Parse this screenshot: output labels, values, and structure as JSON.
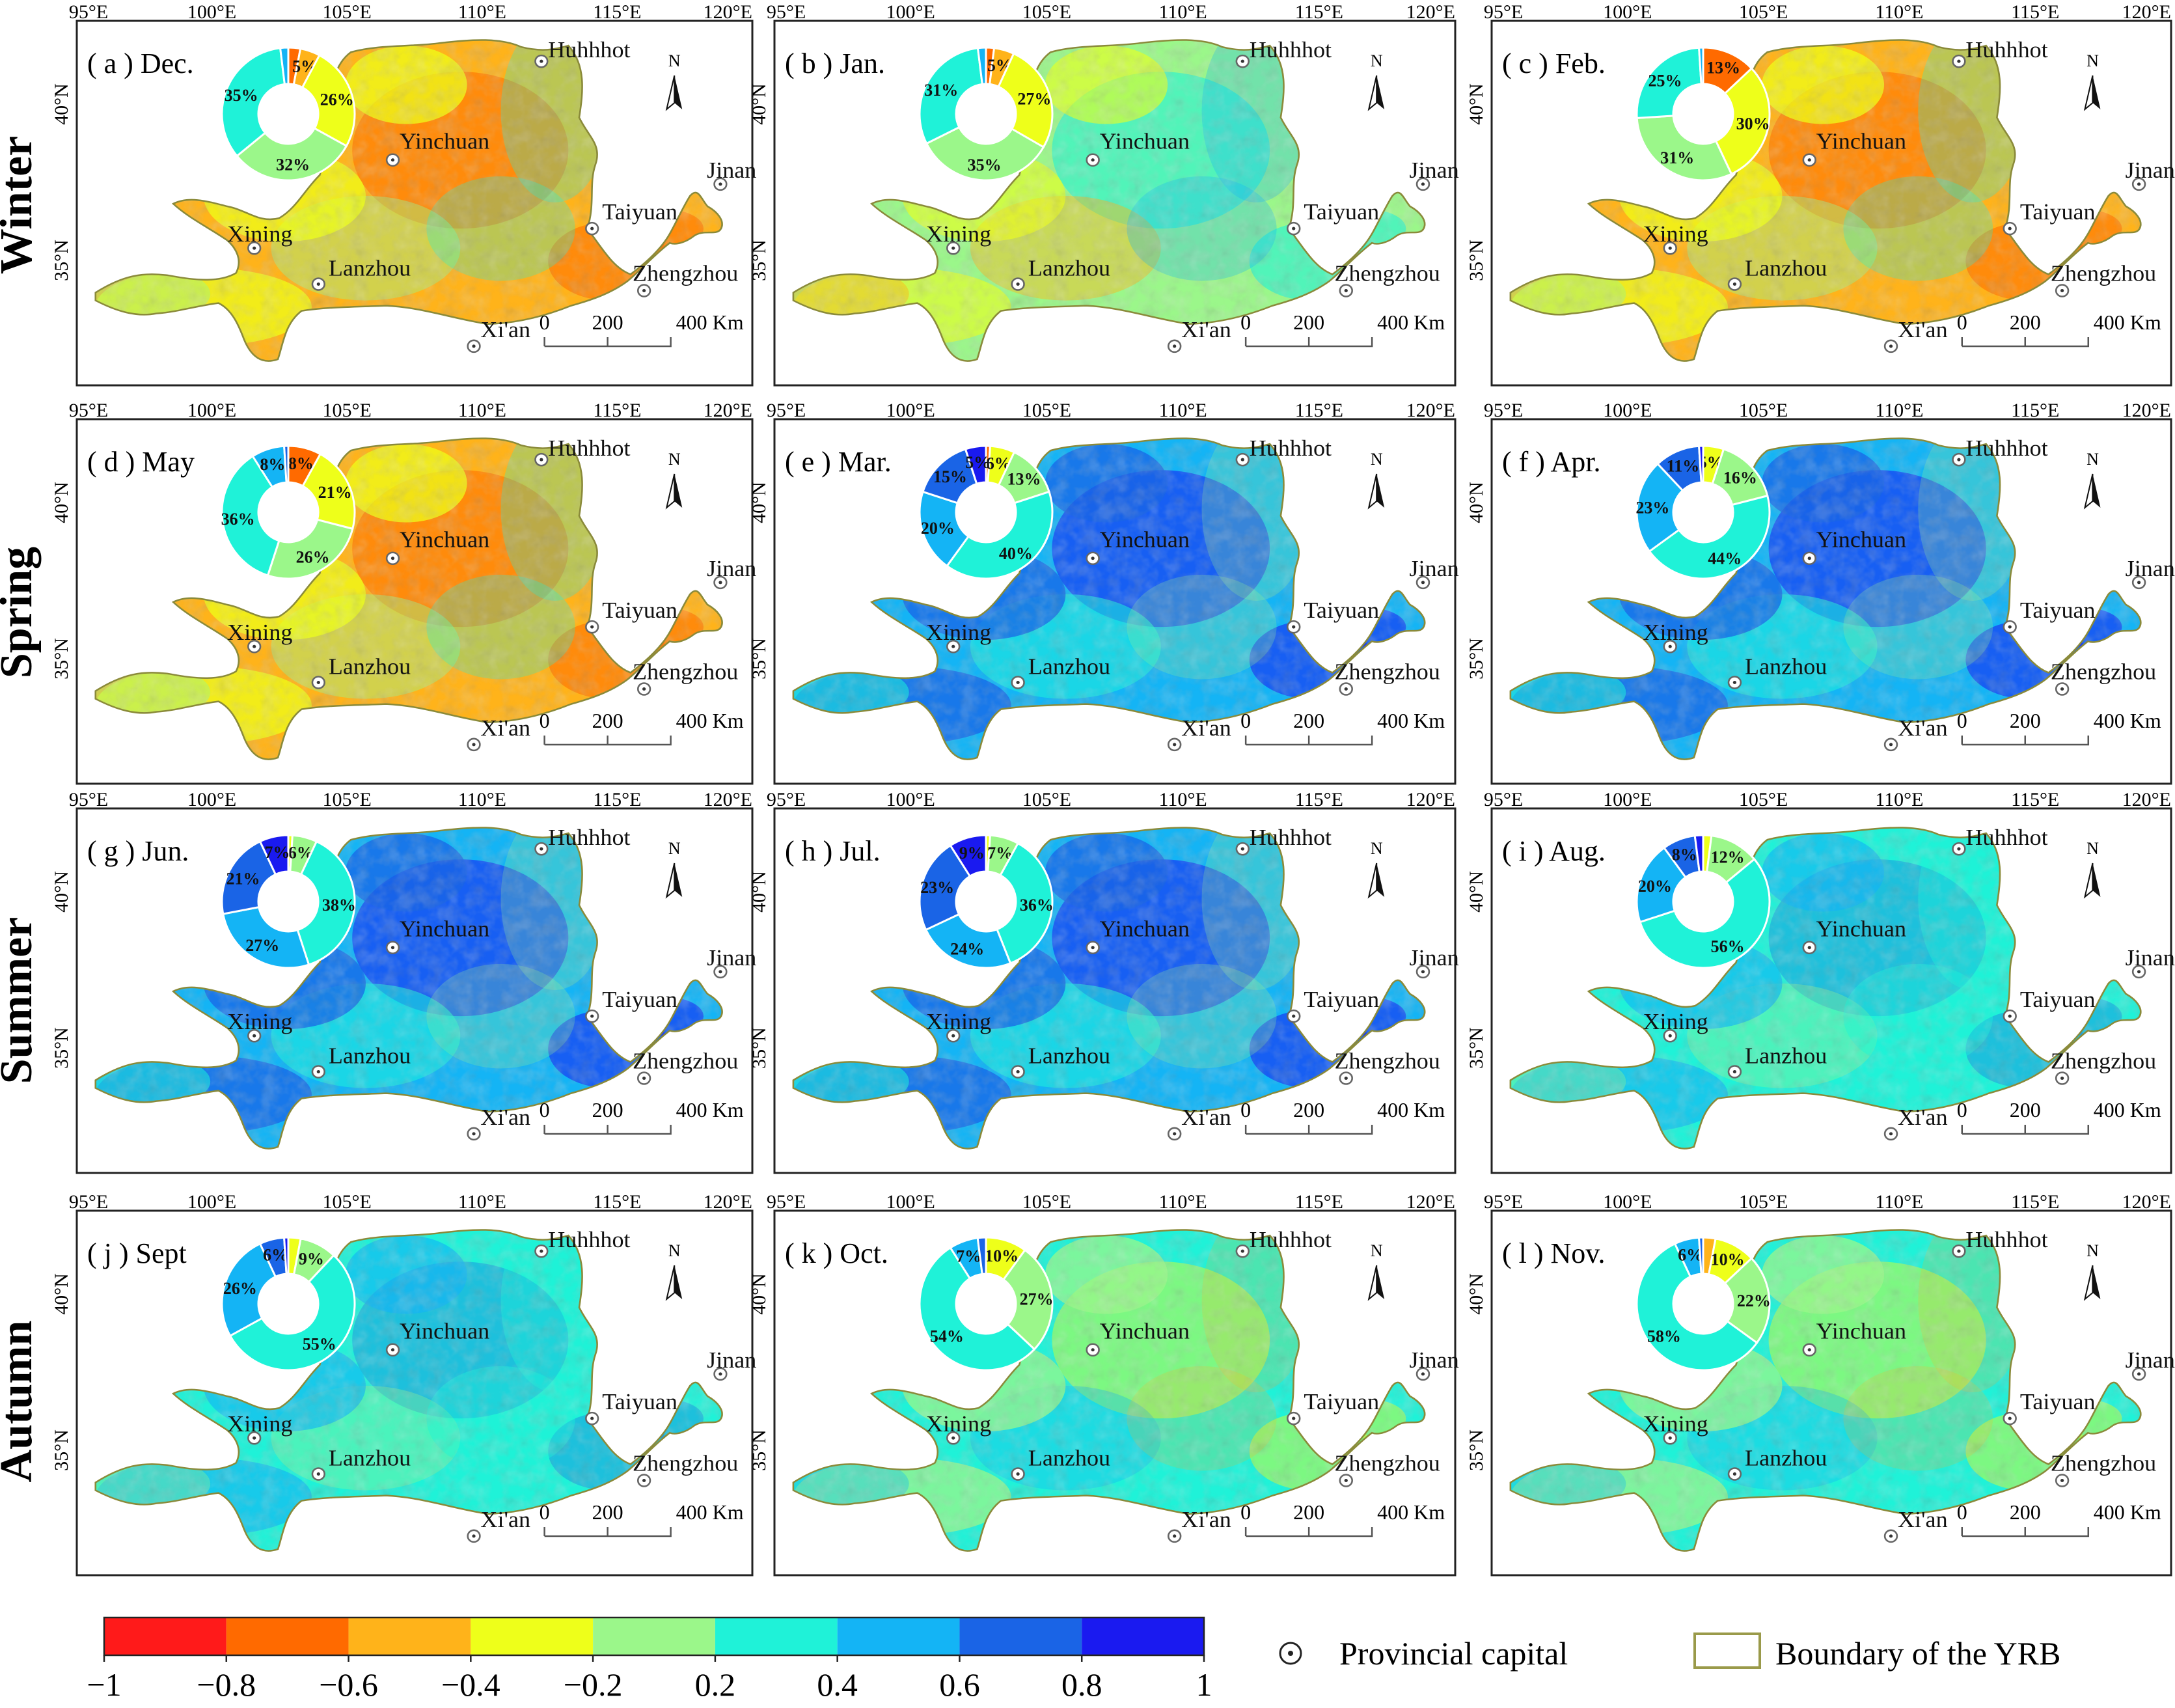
{
  "figure": {
    "seasons": [
      "Winter",
      "Spring",
      "Summer",
      "Autumn"
    ],
    "lon_labels": [
      "95°E",
      "100°E",
      "105°E",
      "110°E",
      "115°E",
      "120°E"
    ],
    "lat_labels": [
      "40°N",
      "35°N"
    ],
    "north_label": "N",
    "scale_labels": [
      "0",
      "200",
      "400 Km"
    ],
    "cities": [
      "Huhhhot",
      "Yinchuan",
      "Taiyuan",
      "Jinan",
      "Xining",
      "Lanzhou",
      "Zhengzhou",
      "Xi'an"
    ],
    "panels": [
      {
        "label": "( a ) Dec.",
        "dominant": "orange",
        "pie": [
          3,
          5,
          26,
          32,
          35,
          2,
          0,
          0
        ]
      },
      {
        "label": "( b ) Jan.",
        "dominant": "mixed",
        "pie": [
          2,
          5,
          27,
          35,
          31,
          2,
          0,
          0
        ]
      },
      {
        "label": "( c ) Feb.",
        "dominant": "orange",
        "pie": [
          13,
          0,
          30,
          31,
          25,
          1,
          0,
          0
        ]
      },
      {
        "label": "( d ) May",
        "dominant": "orange",
        "pie": [
          8,
          0,
          21,
          26,
          36,
          8,
          1,
          0
        ]
      },
      {
        "label": "( e ) Mar.",
        "dominant": "blue",
        "pie": [
          1,
          0,
          6,
          13,
          40,
          20,
          15,
          5
        ]
      },
      {
        "label": "( f ) Apr.",
        "dominant": "blue",
        "pie": [
          0,
          0,
          5,
          16,
          44,
          23,
          11,
          1
        ]
      },
      {
        "label": "( g ) Jun.",
        "dominant": "blue",
        "pie": [
          0,
          0,
          1,
          6,
          38,
          27,
          21,
          7
        ]
      },
      {
        "label": "( h ) Jul.",
        "dominant": "blue",
        "pie": [
          0,
          0,
          1,
          7,
          36,
          24,
          23,
          9
        ]
      },
      {
        "label": "( i ) Aug.",
        "dominant": "cyan",
        "pie": [
          0,
          0,
          2,
          12,
          56,
          20,
          8,
          2
        ]
      },
      {
        "label": "( j ) Sept",
        "dominant": "cyan",
        "pie": [
          0,
          0,
          3,
          9,
          55,
          26,
          6,
          1
        ]
      },
      {
        "label": "( k ) Oct.",
        "dominant": "green",
        "pie": [
          0,
          0,
          10,
          27,
          54,
          7,
          2,
          0
        ]
      },
      {
        "label": "( l ) Nov.",
        "dominant": "green",
        "pie": [
          0,
          3,
          10,
          22,
          58,
          6,
          1,
          0
        ]
      }
    ]
  },
  "colorbar": {
    "colors": [
      "#ff1a1a",
      "#ff6a00",
      "#ffb31a",
      "#eeff1a",
      "#9bf78a",
      "#1ff2d8",
      "#14b4f5",
      "#1a64e6",
      "#1a1af0"
    ],
    "ticks": [
      "−1",
      "−0.8",
      "−0.6",
      "−0.4",
      "−0.2",
      "0.2",
      "0.4",
      "0.6",
      "0.8",
      "1"
    ]
  },
  "legend": {
    "capital_label": "Provincial capital",
    "boundary_label": "Boundary of the YRB"
  }
}
